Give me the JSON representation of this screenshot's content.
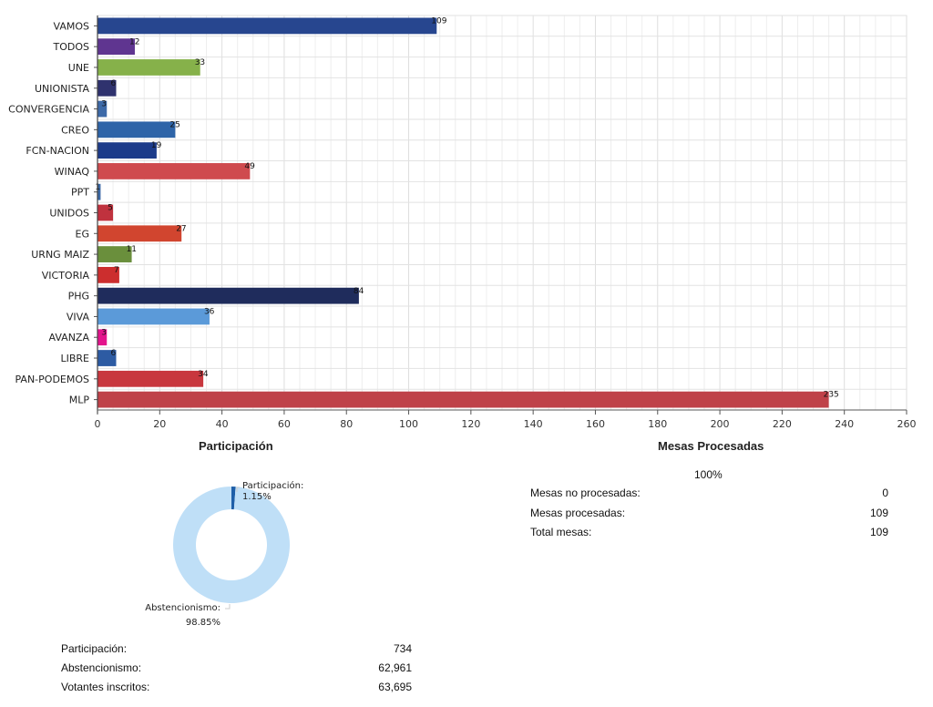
{
  "chart_data": [
    {
      "type": "bar",
      "orientation": "horizontal",
      "categories": [
        "VAMOS",
        "TODOS",
        "UNE",
        "UNIONISTA",
        "CONVERGENCIA",
        "CREO",
        "FCN-NACION",
        "WINAQ",
        "PPT",
        "UNIDOS",
        "EG",
        "URNG MAIZ",
        "VICTORIA",
        "PHG",
        "VIVA",
        "AVANZA",
        "LIBRE",
        "PAN-PODEMOS",
        "MLP"
      ],
      "values": [
        109,
        12,
        33,
        6,
        3,
        25,
        19,
        49,
        1,
        5,
        27,
        11,
        7,
        84,
        36,
        3,
        6,
        34,
        235
      ],
      "colors": [
        "#27468f",
        "#5f3590",
        "#86b14a",
        "#2f326e",
        "#3d6aa8",
        "#2e64a8",
        "#1c3b8a",
        "#cf4a4e",
        "#3c6aa6",
        "#c0323e",
        "#d1452f",
        "#6a8f3c",
        "#cc2e2e",
        "#1f2c5c",
        "#5b9ad9",
        "#e3148c",
        "#2d5ba3",
        "#c8373e",
        "#bf4249"
      ],
      "xlim": [
        0,
        260
      ],
      "xticks": [
        0,
        20,
        40,
        60,
        80,
        100,
        120,
        140,
        160,
        180,
        200,
        220,
        240,
        260
      ],
      "xlabel": "",
      "ylabel": "",
      "grid": true,
      "legend": "none"
    },
    {
      "type": "pie",
      "title": "Participación",
      "donut": true,
      "slices": [
        {
          "name": "Participación",
          "value": 1.15,
          "label": "Participación:",
          "pct_label": "1.15%",
          "color": "#1f5fa8"
        },
        {
          "name": "Abstencionismo",
          "value": 98.85,
          "label": "Abstencionismo:",
          "pct_label": "98.85%",
          "color": "#bfdff7"
        }
      ]
    }
  ],
  "participacion": {
    "title": "Participación",
    "rows": [
      {
        "label": "Participación:",
        "value": "734"
      },
      {
        "label": "Abstencionismo:",
        "value": "62,961"
      },
      {
        "label": "Votantes inscritos:",
        "value": "63,695"
      }
    ]
  },
  "mesas": {
    "title": "Mesas Procesadas",
    "percent": "100%",
    "rows": [
      {
        "label": "Mesas no procesadas:",
        "value": "0"
      },
      {
        "label": "Mesas procesadas:",
        "value": "109"
      },
      {
        "label": "Total mesas:",
        "value": "109"
      }
    ]
  }
}
